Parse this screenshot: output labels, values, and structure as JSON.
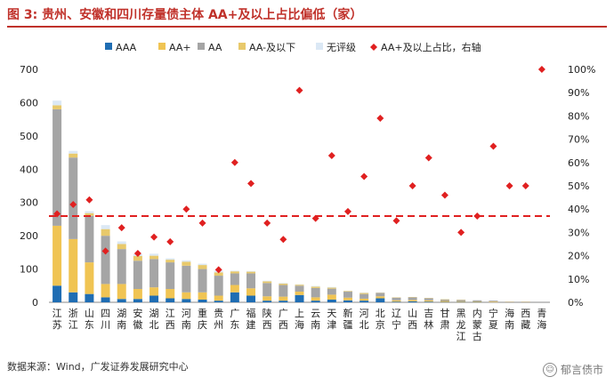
{
  "title": "图 3: 贵州、安徽和四川存量债主体 AA+及以上占比偏低（家）",
  "source": "数据来源：Wind，广发证券发展研究中心",
  "watermark": {
    "icon": "wechat-icon",
    "text": "郁言债市"
  },
  "colors": {
    "AAA": "#1f6db3",
    "AA+": "#f0c453",
    "AA": "#a5a5a5",
    "AA-及以下": "#e8c96b",
    "无评级": "#dbe8f5",
    "ratio": "#e02020",
    "refline": "#e02020"
  },
  "chart_data": {
    "type": "bar",
    "stacked": true,
    "categories": [
      "江苏",
      "浙江",
      "山东",
      "四川",
      "湖南",
      "安徽",
      "湖北",
      "江西",
      "河南",
      "重庆",
      "贵州",
      "广东",
      "福建",
      "陕西",
      "广西",
      "上海",
      "云南",
      "天津",
      "新疆",
      "河北",
      "北京",
      "辽宁",
      "山西",
      "吉林",
      "甘肃",
      "黑龙江",
      "内蒙古",
      "宁夏",
      "海南",
      "西藏",
      "青海"
    ],
    "category_labels": [
      "江苏",
      "浙江",
      "山东",
      "四川",
      "湖南",
      "安徽",
      "湖北",
      "江西",
      "河南",
      "重庆",
      "贵州",
      "广东",
      "福建",
      "陕西",
      "广西",
      "上海",
      "云南",
      "天津",
      "新疆",
      "河北",
      "北京",
      "辽宁",
      "山西",
      "吉林",
      "甘肃",
      "黑龙\n江",
      "内蒙\n古",
      "宁夏",
      "海南",
      "西藏",
      "青海"
    ],
    "series": [
      {
        "name": "AAA",
        "axis": "left",
        "values": [
          50,
          30,
          25,
          15,
          10,
          10,
          20,
          12,
          10,
          8,
          5,
          30,
          20,
          5,
          5,
          22,
          5,
          8,
          6,
          5,
          12,
          2,
          3,
          2,
          1,
          1,
          1,
          0,
          0,
          0,
          0
        ]
      },
      {
        "name": "AA+",
        "axis": "left",
        "values": [
          180,
          160,
          95,
          40,
          45,
          30,
          25,
          28,
          20,
          22,
          15,
          22,
          22,
          13,
          12,
          10,
          10,
          15,
          8,
          6,
          6,
          4,
          4,
          4,
          3,
          2,
          2,
          2,
          1,
          1,
          0
        ]
      },
      {
        "name": "AA",
        "axis": "left",
        "values": [
          350,
          245,
          140,
          145,
          105,
          85,
          85,
          80,
          80,
          70,
          60,
          35,
          45,
          40,
          35,
          18,
          28,
          18,
          18,
          14,
          10,
          8,
          8,
          6,
          4,
          4,
          3,
          3,
          1,
          1,
          0
        ]
      },
      {
        "name": "AA-及以下",
        "axis": "left",
        "values": [
          12,
          12,
          8,
          20,
          15,
          14,
          10,
          8,
          12,
          12,
          10,
          6,
          5,
          5,
          4,
          3,
          4,
          3,
          2,
          3,
          1,
          1,
          1,
          1,
          1,
          1,
          0,
          0,
          0,
          0,
          0
        ]
      },
      {
        "name": "无评级",
        "axis": "left",
        "values": [
          14,
          8,
          6,
          12,
          8,
          6,
          6,
          4,
          4,
          4,
          5,
          2,
          2,
          2,
          2,
          1,
          2,
          2,
          1,
          1,
          1,
          0,
          0,
          0,
          0,
          0,
          0,
          0,
          0,
          0,
          0
        ]
      },
      {
        "name": "AA+及以上占比，右轴",
        "axis": "right",
        "type": "scatter",
        "values": [
          38,
          42,
          44,
          22,
          32,
          21,
          28,
          26,
          40,
          34,
          14,
          60,
          51,
          34,
          27,
          91,
          36,
          63,
          39,
          54,
          79,
          35,
          50,
          62,
          46,
          30,
          37,
          67,
          50,
          50,
          100
        ]
      }
    ],
    "reference_line": {
      "axis": "right",
      "value": 37,
      "style": "dashed"
    },
    "y_left": {
      "min": 0,
      "max": 700,
      "ticks": [
        0,
        100,
        200,
        300,
        400,
        500,
        600,
        700
      ]
    },
    "y_right": {
      "min": 0,
      "max": 100,
      "ticks": [
        "0%",
        "10%",
        "20%",
        "30%",
        "40%",
        "50%",
        "60%",
        "70%",
        "80%",
        "90%",
        "100%"
      ]
    },
    "legend_placement": "top",
    "grid": false,
    "xlabel": "",
    "ylabel": ""
  }
}
